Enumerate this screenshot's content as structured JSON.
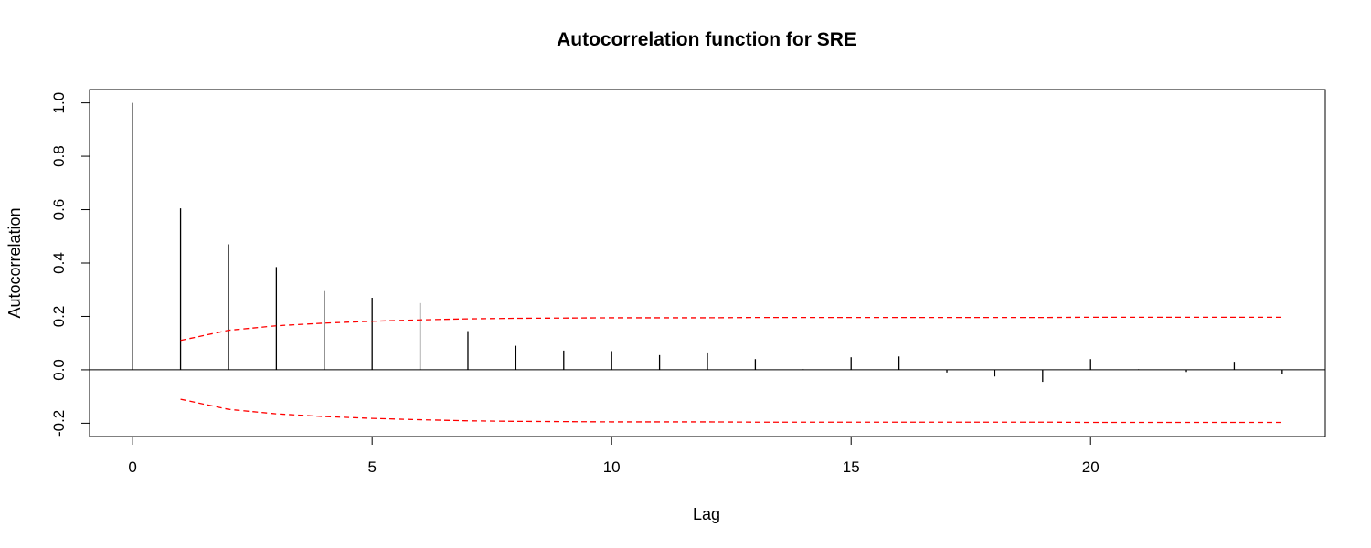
{
  "chart_data": {
    "type": "bar",
    "title": "Autocorrelation function for SRE",
    "xlabel": "Lag",
    "ylabel": "Autocorrelation",
    "xlim": [
      -0.9,
      24.9
    ],
    "ylim": [
      -0.25,
      1.05
    ],
    "x_ticks": [
      0,
      5,
      10,
      15,
      20
    ],
    "y_ticks": [
      -0.2,
      0.0,
      0.2,
      0.4,
      0.6,
      0.8,
      1.0
    ],
    "y_tick_labels": [
      "-0.2",
      "0.0",
      "0.2",
      "0.4",
      "0.6",
      "0.8",
      "1.0"
    ],
    "lags": [
      0,
      1,
      2,
      3,
      4,
      5,
      6,
      7,
      8,
      9,
      10,
      11,
      12,
      13,
      14,
      15,
      16,
      17,
      18,
      19,
      20,
      21,
      22,
      23,
      24
    ],
    "acf": [
      1.0,
      0.605,
      0.47,
      0.385,
      0.295,
      0.27,
      0.25,
      0.145,
      0.09,
      0.072,
      0.07,
      0.055,
      0.065,
      0.04,
      0.002,
      0.047,
      0.05,
      -0.01,
      -0.025,
      -0.045,
      0.04,
      0.002,
      -0.008,
      0.03,
      -0.015
    ],
    "confidence_band": {
      "lags": [
        1,
        2,
        3,
        4,
        5,
        6,
        7,
        8,
        9,
        10,
        11,
        12,
        13,
        14,
        15,
        16,
        17,
        18,
        19,
        20,
        21,
        22,
        23,
        24
      ],
      "upper": [
        0.11,
        0.148,
        0.165,
        0.175,
        0.182,
        0.187,
        0.191,
        0.193,
        0.194,
        0.195,
        0.195,
        0.195,
        0.196,
        0.196,
        0.196,
        0.196,
        0.196,
        0.196,
        0.196,
        0.197,
        0.197,
        0.197,
        0.197,
        0.197
      ],
      "lower": [
        -0.11,
        -0.148,
        -0.165,
        -0.175,
        -0.182,
        -0.187,
        -0.191,
        -0.193,
        -0.194,
        -0.195,
        -0.195,
        -0.195,
        -0.196,
        -0.196,
        -0.196,
        -0.196,
        -0.196,
        -0.196,
        -0.196,
        -0.197,
        -0.197,
        -0.197,
        -0.197,
        -0.197
      ],
      "color": "#ff0000"
    },
    "bar_color": "#000000",
    "grid": false
  }
}
